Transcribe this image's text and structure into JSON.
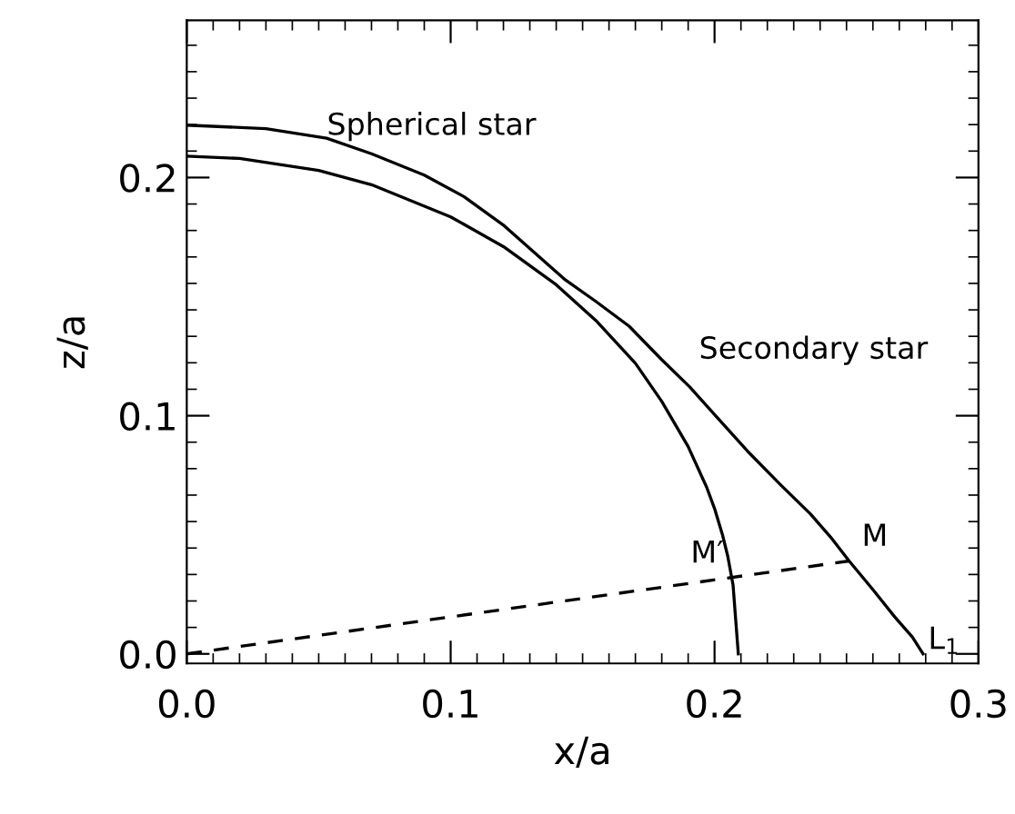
{
  "chart_data": {
    "type": "line",
    "xlabel": "x/a",
    "ylabel": "z/a",
    "xlim": [
      0,
      0.3
    ],
    "ylim": [
      -0.004,
      0.266
    ],
    "xticks": [
      {
        "value": 0,
        "label": "0.0"
      },
      0.1,
      0.2,
      0.3
    ],
    "yticks": [
      {
        "value": 0,
        "label": "0.0"
      },
      0.1,
      0.2
    ],
    "grid": false,
    "legend": false,
    "series": [
      {
        "color": "#000000",
        "line_style": "solid",
        "x": [
          0,
          0.02,
          0.05,
          0.07,
          0.1,
          0.12,
          0.14,
          0.155,
          0.17,
          0.18,
          0.19,
          0.197,
          0.2,
          0.203,
          0.205,
          0.207,
          0.209
        ],
        "values": [
          0.209,
          0.208,
          0.203,
          0.197,
          0.1835,
          0.171,
          0.155,
          0.14,
          0.122,
          0.106,
          0.087,
          0.07,
          0.061,
          0.05,
          0.041,
          0.029,
          0
        ]
      },
      {
        "color": "#000000",
        "line_style": "solid",
        "x": [
          0,
          0.03,
          0.053,
          0.07,
          0.09,
          0.105,
          0.12,
          0.1435,
          0.155,
          0.1676,
          0.18,
          0.1905,
          0.2,
          0.2133,
          0.225,
          0.2363,
          0.244,
          0.251,
          0.26,
          0.2683,
          0.275,
          0.279
        ],
        "values": [
          0.222,
          0.2205,
          0.2165,
          0.21,
          0.201,
          0.192,
          0.18,
          0.157,
          0.148,
          0.1376,
          0.1235,
          0.1122,
          0.1005,
          0.0842,
          0.071,
          0.0588,
          0.049,
          0.039,
          0.027,
          0.0155,
          0.007,
          0
        ]
      },
      {
        "color": "#000000",
        "line_style": "dashed",
        "x": [
          0,
          0.251
        ],
        "values": [
          0,
          0.039
        ]
      }
    ],
    "annotations": [
      "Spherical star",
      "Secondary star",
      {
        "text": "M′",
        "x": 0.2053,
        "y": 0.032
      },
      {
        "text": "M",
        "x": 0.251,
        "y": 0.039
      },
      {
        "text": "L$_{1}$",
        "x": 0.279,
        "y": 0
      }
    ]
  }
}
